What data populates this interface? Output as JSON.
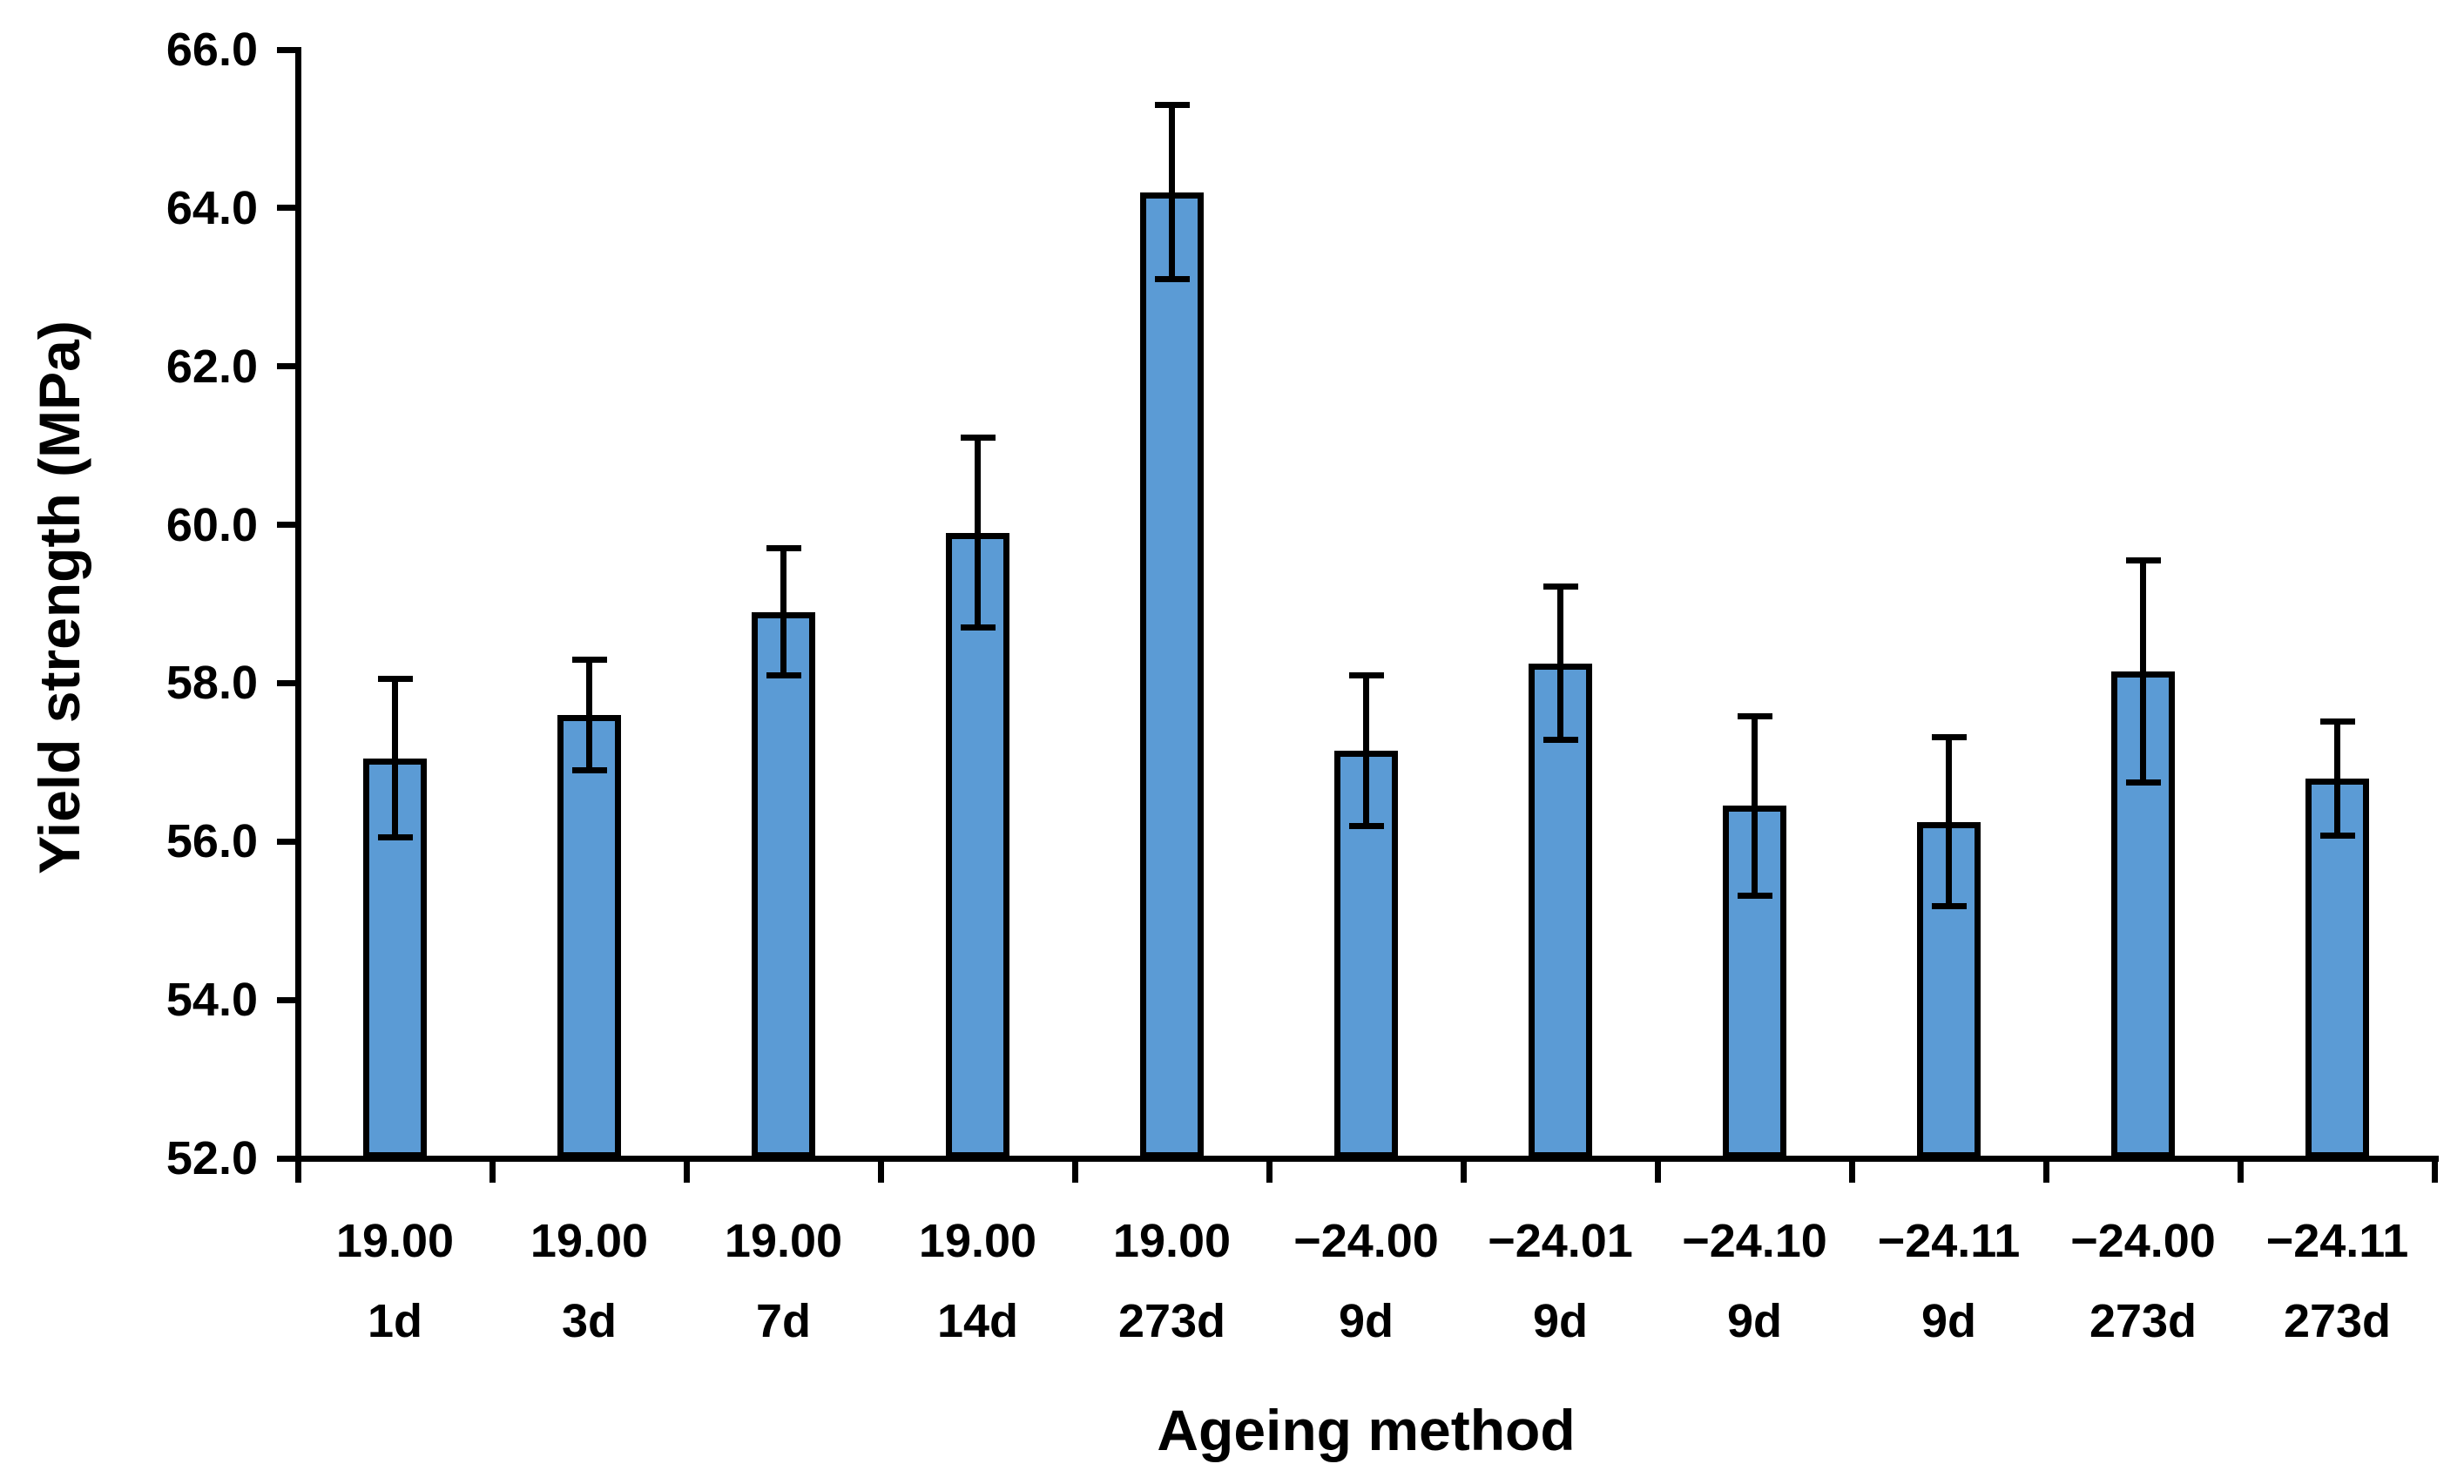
{
  "chart_data": {
    "type": "bar",
    "title": "",
    "xlabel": "Ageing method",
    "ylabel": "Yield strength (MPa)",
    "ylim": [
      52.0,
      66.0
    ],
    "ytick_step": 2.0,
    "ytick_labels": [
      "66.0",
      "64.0",
      "62.0",
      "60.0",
      "58.0",
      "56.0",
      "54.0",
      "52.0"
    ],
    "grid": false,
    "legend": "none",
    "bar_color": "#5B9BD5",
    "bar_border_color": "#000000",
    "error_bar_color": "#000000",
    "text_color": "#000000",
    "categories": [
      {
        "label_top": "19.00",
        "label_bottom": "1d"
      },
      {
        "label_top": "19.00",
        "label_bottom": "3d"
      },
      {
        "label_top": "19.00",
        "label_bottom": "7d"
      },
      {
        "label_top": "19.00",
        "label_bottom": "14d"
      },
      {
        "label_top": "19.00",
        "label_bottom": "273d"
      },
      {
        "label_top": "−24.00",
        "label_bottom": "9d"
      },
      {
        "label_top": "−24.01",
        "label_bottom": "9d"
      },
      {
        "label_top": "−24.10",
        "label_bottom": "9d"
      },
      {
        "label_top": "−24.11",
        "label_bottom": "9d"
      },
      {
        "label_top": "−24.00",
        "label_bottom": "273d"
      },
      {
        "label_top": "−24.11",
        "label_bottom": "273d"
      }
    ],
    "series": [
      {
        "name": "Yield strength",
        "values": [
          57.05,
          57.6,
          58.9,
          59.9,
          64.2,
          57.15,
          58.25,
          56.45,
          56.25,
          58.15,
          56.8
        ],
        "errors": [
          1.0,
          0.7,
          0.8,
          1.2,
          1.1,
          0.95,
          0.97,
          1.13,
          1.07,
          1.4,
          0.72
        ]
      }
    ]
  }
}
